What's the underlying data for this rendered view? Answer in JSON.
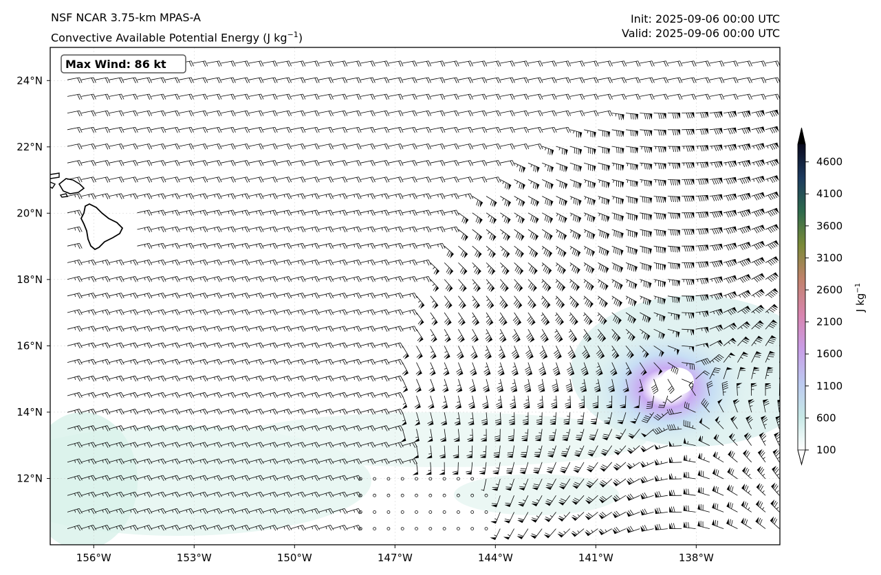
{
  "header": {
    "model": "NSF NCAR 3.75-km MPAS-A",
    "field_name": "Convective Available Potential Energy (J kg",
    "field_exp": "−1",
    "field_close": ")",
    "init": "Init: 2025-09-06 00:00 UTC",
    "valid": "Valid: 2025-09-06 00:00 UTC"
  },
  "annotation": {
    "max_wind": "Max Wind: 86 kt"
  },
  "map": {
    "lon_range": [
      -157.3,
      -135.5
    ],
    "lat_range": [
      10.0,
      25.0
    ],
    "lon_ticks": [
      {
        "value": -156,
        "label": "156°W"
      },
      {
        "value": -153,
        "label": "153°W"
      },
      {
        "value": -150,
        "label": "150°W"
      },
      {
        "value": -147,
        "label": "147°W"
      },
      {
        "value": -144,
        "label": "144°W"
      },
      {
        "value": -141,
        "label": "141°W"
      },
      {
        "value": -138,
        "label": "138°W"
      }
    ],
    "lat_ticks": [
      {
        "value": 12,
        "label": "12°N"
      },
      {
        "value": 14,
        "label": "14°N"
      },
      {
        "value": 16,
        "label": "16°N"
      },
      {
        "value": 18,
        "label": "18°N"
      },
      {
        "value": 20,
        "label": "20°N"
      },
      {
        "value": 22,
        "label": "22°N"
      },
      {
        "value": 24,
        "label": "24°N"
      }
    ],
    "cyclone_center": {
      "lon": -138.3,
      "lat": 14.7
    },
    "max_wind_kt": 86
  },
  "colorbar": {
    "label_base": "J kg",
    "label_exp": "−1",
    "ticks": [
      "100",
      "600",
      "1100",
      "1600",
      "2100",
      "2600",
      "3100",
      "3600",
      "4100",
      "4600"
    ],
    "colors": [
      "#ffffff",
      "#c6e8e6",
      "#bcc9f0",
      "#c89de6",
      "#d885b0",
      "#c0826a",
      "#7a8a38",
      "#2e6a4c",
      "#1c3a5e",
      "#0a0a1e"
    ]
  },
  "colors": {
    "frame": "#000000",
    "barb": "#000000",
    "coast": "#000000"
  }
}
